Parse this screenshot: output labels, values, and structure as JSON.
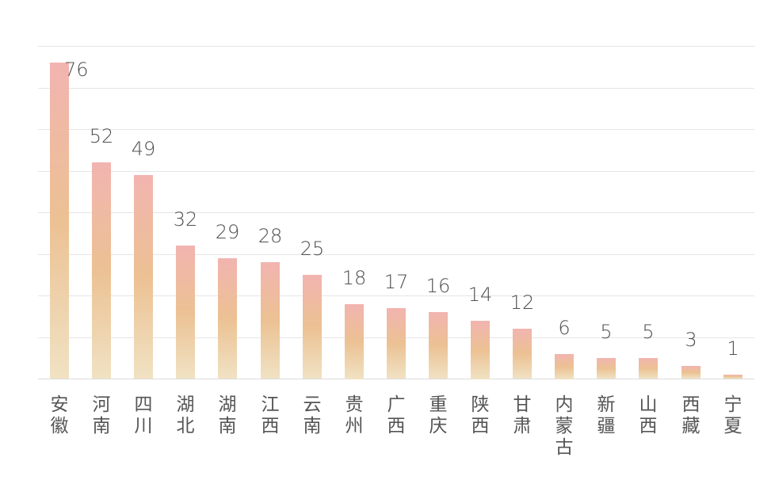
{
  "chart_data": {
    "type": "bar",
    "title": "",
    "xlabel": "",
    "ylabel": "",
    "ylim": [
      0,
      80
    ],
    "grid": true,
    "grid_step": 10,
    "legend": null,
    "categories": [
      "安徽",
      "河南",
      "四川",
      "湖北",
      "湖南",
      "江西",
      "云南",
      "贵州",
      "广西",
      "重庆",
      "陕西",
      "甘肃",
      "内蒙古",
      "新疆",
      "山西",
      "西藏",
      "宁夏"
    ],
    "values": [
      76,
      52,
      49,
      32,
      29,
      28,
      25,
      18,
      17,
      16,
      14,
      12,
      6,
      5,
      5,
      3,
      1
    ],
    "data_labels": [
      "76",
      "52",
      "49",
      "32",
      "29",
      "28",
      "25",
      "18",
      "17",
      "16",
      "14",
      "12",
      "6",
      "5",
      "5",
      "3",
      "1"
    ],
    "colors": {
      "bar_top": "#f2b4b0",
      "bar_mid": "#ecc193",
      "bar_bottom": "#f0e2c3",
      "label": "#505050",
      "grid": "#e6e6e6"
    }
  }
}
